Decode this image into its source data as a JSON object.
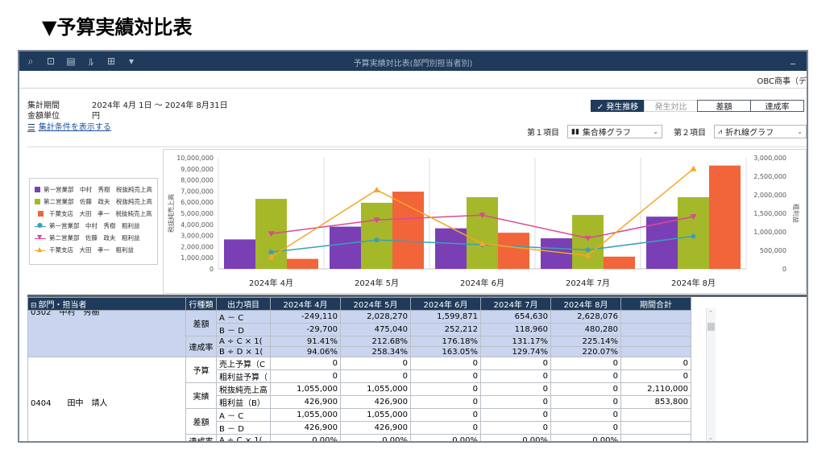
{
  "page_heading": "▼予算実績対比表",
  "window": {
    "title": "予算実績対比表(部門別担当者別)",
    "minimize": "_",
    "company": "OBC商事（デ",
    "toolbar_icons": [
      "zoom-in-icon",
      "zoom-page-icon",
      "print-icon",
      "pdf-icon",
      "export-icon",
      "dropdown-icon"
    ]
  },
  "conditions": {
    "period_label": "集計期間",
    "period_value": "2024年 4月 1日 ～ 2024年 8月31日",
    "unit_label": "金額単位",
    "unit_value": "円",
    "show_link": "集計条件を表示する"
  },
  "tabs": [
    {
      "label": "✓ 発生推移",
      "state": "active"
    },
    {
      "label": "発生対比",
      "state": "inactive"
    },
    {
      "label": "差額",
      "state": "normal"
    },
    {
      "label": "達成率",
      "state": "normal"
    }
  ],
  "item1": {
    "label": "第１項目",
    "value": "集合棒グラフ"
  },
  "item2": {
    "label": "第２項目",
    "value": "折れ線グラフ"
  },
  "chart_data": {
    "type": "bar",
    "categories": [
      "2024年 4月",
      "2024年 5月",
      "2024年 6月",
      "2024年 7月",
      "2024年 8月"
    ],
    "ylabel": "税抜純売上高",
    "y2label": "粗利益",
    "ylim": [
      0,
      10000000
    ],
    "y2lim": [
      0,
      3000000
    ],
    "y_ticks": [
      "0",
      "1,000,000",
      "2,000,000",
      "3,000,000",
      "4,000,000",
      "5,000,000",
      "6,000,000",
      "7,000,000",
      "8,000,000",
      "9,000,000",
      "10,000,000"
    ],
    "y2_ticks": [
      "0",
      "500,000",
      "1,000,000",
      "1,500,000",
      "2,000,000",
      "2,500,000",
      "3,000,000"
    ],
    "bar_series": [
      {
        "name": "第一営業部　中村　秀樹　税抜純売上高",
        "color": "#7a3fb5",
        "values": [
          2650000,
          3800000,
          3650000,
          2750000,
          4700000
        ]
      },
      {
        "name": "第二営業部　佐藤　政夫　税抜純売上高",
        "color": "#a5b82a",
        "values": [
          6300000,
          5950000,
          6450000,
          4850000,
          6450000
        ]
      },
      {
        "name": "千葉支店　大田　孝一　税抜純売上高",
        "color": "#f2643a",
        "values": [
          900000,
          6950000,
          3250000,
          1100000,
          9300000
        ]
      }
    ],
    "line_series": [
      {
        "name": "第一営業部　中村　秀樹　粗利益",
        "color": "#3aa0b8",
        "marker": "circle",
        "values": [
          450000,
          780000,
          650000,
          510000,
          880000
        ]
      },
      {
        "name": "第二営業部　佐藤　政夫　粗利益",
        "color": "#d94a93",
        "marker": "tri-down",
        "values": [
          950000,
          1320000,
          1450000,
          830000,
          1410000
        ]
      },
      {
        "name": "千葉支店　大田　孝一　粗利益",
        "color": "#f6a623",
        "marker": "tri-up",
        "values": [
          320000,
          2130000,
          680000,
          360000,
          2700000
        ]
      }
    ]
  },
  "grid": {
    "headers": [
      "部門・担当者",
      "行種類",
      "出力項目",
      "2024年 4月",
      "2024年 5月",
      "2024年 6月",
      "2024年 7月",
      "2024年 8月",
      "期間合計"
    ],
    "partial_person": "0302　中村　秀樹",
    "groupA": [
      {
        "type": "差額",
        "rows": [
          {
            "item": "A － C",
            "vals": [
              "-249,110",
              "2,028,270",
              "1,599,871",
              "654,630",
              "2,628,076",
              ""
            ]
          },
          {
            "item": "B － D",
            "vals": [
              "-29,700",
              "475,040",
              "252,212",
              "118,960",
              "480,280",
              ""
            ]
          }
        ]
      },
      {
        "type": "達成率",
        "rows": [
          {
            "item": "A ÷ C × 1(",
            "vals": [
              "91.41%",
              "212.68%",
              "176.18%",
              "131.17%",
              "225.14%",
              ""
            ]
          },
          {
            "item": "B ÷ D × 1(",
            "vals": [
              "94.06%",
              "258.34%",
              "163.05%",
              "129.74%",
              "220.07%",
              ""
            ]
          }
        ]
      }
    ],
    "person2": "0404　　田中　靖人",
    "groupB": [
      {
        "type": "予算",
        "rows": [
          {
            "item": "売上予算（C",
            "vals": [
              "0",
              "0",
              "0",
              "0",
              "0",
              "0"
            ]
          },
          {
            "item": "粗利益予算（",
            "vals": [
              "0",
              "0",
              "0",
              "0",
              "0",
              "0"
            ]
          }
        ]
      },
      {
        "type": "実績",
        "rows": [
          {
            "item": "税抜純売上高",
            "vals": [
              "1,055,000",
              "1,055,000",
              "0",
              "0",
              "0",
              "2,110,000"
            ]
          },
          {
            "item": "粗利益（B）",
            "vals": [
              "426,900",
              "426,900",
              "0",
              "0",
              "0",
              "853,800"
            ]
          }
        ]
      },
      {
        "type": "差額",
        "rows": [
          {
            "item": "A － C",
            "vals": [
              "1,055,000",
              "1,055,000",
              "0",
              "0",
              "0",
              ""
            ]
          },
          {
            "item": "B － D",
            "vals": [
              "426,900",
              "426,900",
              "0",
              "0",
              "0",
              ""
            ]
          }
        ]
      },
      {
        "type": "達成率",
        "rows": [
          {
            "item": "A ÷ C × 1(",
            "vals": [
              "0.00%",
              "0.00%",
              "0.00%",
              "0.00%",
              "0.00%",
              ""
            ]
          }
        ]
      }
    ]
  }
}
